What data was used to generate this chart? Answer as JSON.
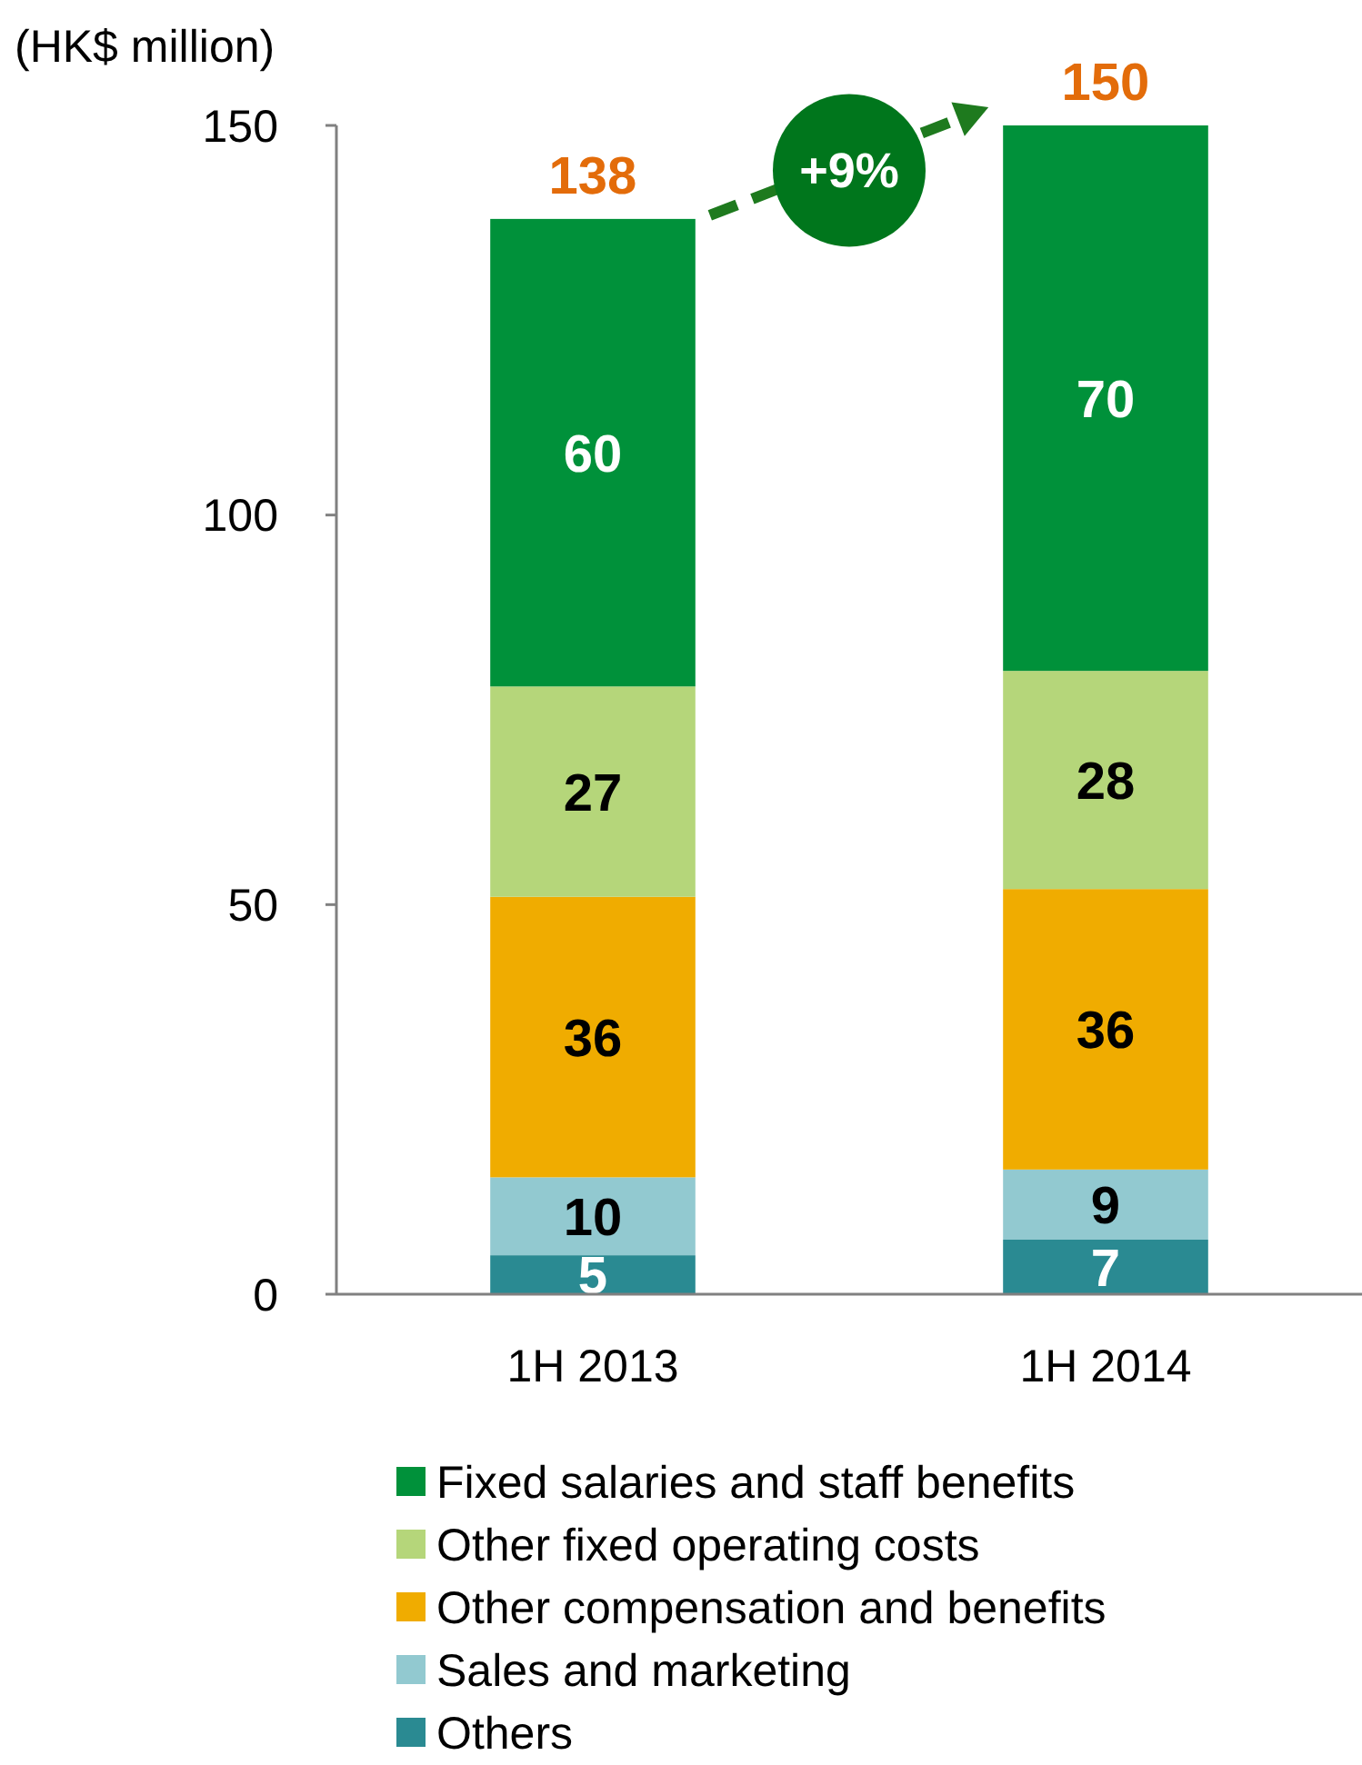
{
  "chart_data": {
    "type": "bar",
    "stacked": true,
    "ylabel": "(HK$ million)",
    "categories": [
      "1H 2013",
      "1H 2014"
    ],
    "series": [
      {
        "name": "Others",
        "color": "#2a8a92",
        "values": [
          5,
          7
        ]
      },
      {
        "name": "Sales and marketing",
        "color": "#92c9d0",
        "values": [
          10,
          9
        ]
      },
      {
        "name": "Other compensation and benefits",
        "color": "#f0ac00",
        "values": [
          36,
          36
        ]
      },
      {
        "name": "Other fixed operating costs",
        "color": "#b5d67a",
        "values": [
          27,
          28
        ]
      },
      {
        "name": "Fixed salaries and staff benefits",
        "color": "#00913a",
        "values": [
          60,
          70
        ]
      }
    ],
    "ylim": [
      0,
      150
    ],
    "yticks": [
      0,
      50,
      100,
      150
    ],
    "data_labels": true,
    "totals": [
      "138",
      "150"
    ],
    "annotations": [
      "+9%"
    ],
    "legend": "bottom"
  }
}
